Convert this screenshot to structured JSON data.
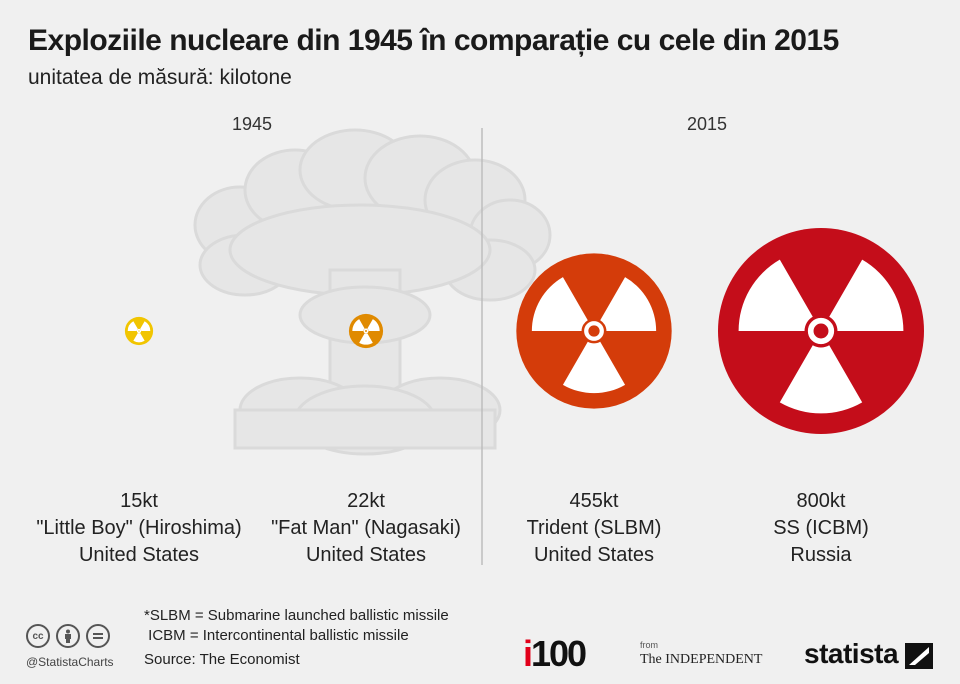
{
  "title": "Exploziile nucleare din 1945 în comparație cu cele din 2015",
  "subtitle": "unitatea de măsură: kilotone",
  "chart_data": {
    "type": "bubble",
    "unit": "kt",
    "groups": [
      "1945",
      "2015"
    ],
    "items": [
      {
        "group": "1945",
        "value": 15,
        "value_label": "15kt",
        "name": "\"Little Boy\" (Hiroshima)",
        "country": "United States",
        "color": "#f1c500"
      },
      {
        "group": "1945",
        "value": 22,
        "value_label": "22kt",
        "name": "\"Fat Man\" (Nagasaki)",
        "country": "United States",
        "color": "#e08a00"
      },
      {
        "group": "2015",
        "value": 455,
        "value_label": "455kt",
        "name": "Trident (SLBM)",
        "country": "United States",
        "color": "#d43c0a"
      },
      {
        "group": "2015",
        "value": 800,
        "value_label": "800kt",
        "name": "SS (ICBM)",
        "country": "Russia",
        "color": "#c40d1a"
      }
    ]
  },
  "footnotes": "*SLBM = Submarine launched ballistic missile\n ICBM = Intercontinental ballistic missile",
  "source": "Source: The Economist",
  "social_handle": "@StatistaCharts",
  "license_icons": [
    "cc-icon",
    "attribution-icon",
    "no-derivatives-icon"
  ],
  "brands": {
    "i100_prefix": "i",
    "i100_number": "100",
    "from_label": "from",
    "independent": "The INDEPENDENT",
    "statista": "statista"
  }
}
